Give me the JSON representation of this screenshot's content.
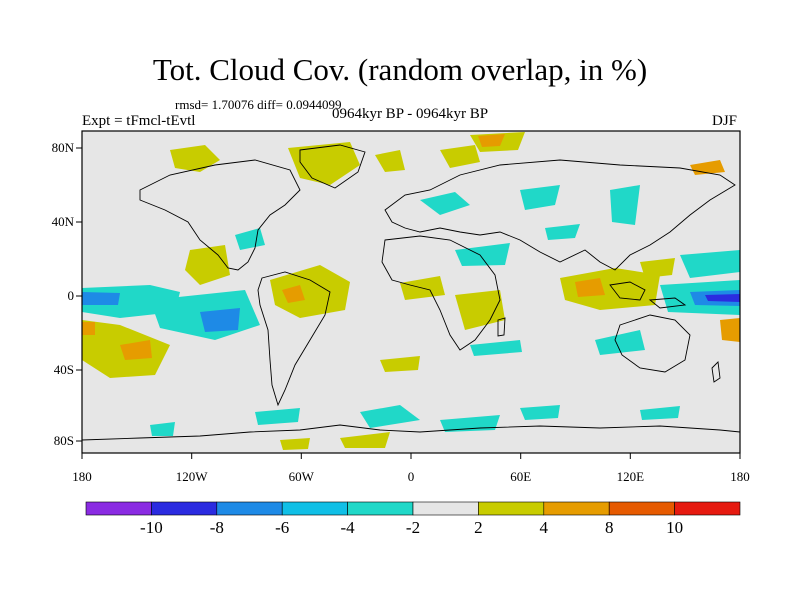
{
  "title": "Tot. Cloud Cov. (random overlap, in %)",
  "stats": "rmsd= 1.70076 diff= 0.0944099",
  "experiment": "Expt = tFmcl-tEvtl",
  "period": "0964kyr BP - 0964kyr BP",
  "season": "DJF",
  "x_ticks": [
    "180",
    "120W",
    "60W",
    "0",
    "60E",
    "120E",
    "180"
  ],
  "y_ticks": [
    "80N",
    "40N",
    "0",
    "40S",
    "80S"
  ],
  "colorbar": {
    "labels": [
      "-10",
      "-8",
      "-6",
      "-4",
      "-2",
      "2",
      "4",
      "8",
      "10"
    ],
    "colors": [
      "#8a2be2",
      "#2b2be0",
      "#1e8ae6",
      "#10bfe6",
      "#20d8c8",
      "#e6e6e6",
      "#c8cc00",
      "#e69c00",
      "#e65a00",
      "#e61a10"
    ]
  },
  "colors": {
    "neutral": "#e6e6e6",
    "pos_small": "#c8cc00",
    "pos_mid": "#e69c00",
    "neg_small": "#20d8c8",
    "neg_mid": "#10bfe6",
    "neg_large": "#1e8ae6",
    "neg_max": "#2b2be0"
  }
}
